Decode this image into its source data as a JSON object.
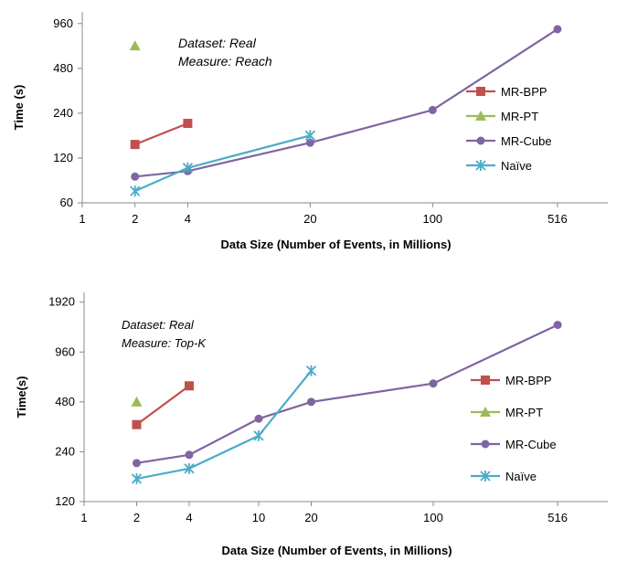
{
  "chart_data": [
    {
      "type": "line",
      "xlabel": "Data Size (Number of Events, in Millions)",
      "ylabel": "Time (s)",
      "x_scale": "log",
      "y_scale": "log",
      "xticks": [
        1,
        2,
        4,
        20,
        100,
        516
      ],
      "yticks": [
        60,
        120,
        240,
        480,
        960
      ],
      "xlim": [
        1,
        1000
      ],
      "ylim": [
        60,
        1150
      ],
      "annotations": [
        "Dataset: Real",
        "Measure: Reach"
      ],
      "legend_position": "right",
      "series": [
        {
          "name": "MR-BPP",
          "color": "#c0504d",
          "marker": "square",
          "points": [
            [
              2,
              148
            ],
            [
              4,
              205
            ]
          ]
        },
        {
          "name": "MR-PT",
          "color": "#9bbb59",
          "marker": "triangle",
          "points": [
            [
              2,
              680
            ]
          ]
        },
        {
          "name": "MR-Cube",
          "color": "#8064a2",
          "marker": "circle",
          "points": [
            [
              2,
              90
            ],
            [
              4,
              98
            ],
            [
              20,
              152
            ],
            [
              100,
              252
            ],
            [
              516,
              880
            ]
          ]
        },
        {
          "name": "Naïve",
          "color": "#4bacc6",
          "marker": "star",
          "points": [
            [
              2,
              72
            ],
            [
              4,
              103
            ],
            [
              20,
              170
            ]
          ]
        }
      ]
    },
    {
      "type": "line",
      "xlabel": "Data Size (Number of Events, in Millions)",
      "ylabel": "Time(s)",
      "x_scale": "log",
      "y_scale": "log",
      "xticks": [
        1,
        2,
        4,
        10,
        20,
        100,
        516
      ],
      "yticks": [
        120,
        240,
        480,
        960,
        1920
      ],
      "xlim": [
        1,
        1000
      ],
      "ylim": [
        120,
        2200
      ],
      "annotations": [
        "Dataset: Real",
        "Measure: Top-K"
      ],
      "legend_position": "right",
      "series": [
        {
          "name": "MR-BPP",
          "color": "#c0504d",
          "marker": "square",
          "points": [
            [
              2,
              350
            ],
            [
              4,
              600
            ]
          ]
        },
        {
          "name": "MR-PT",
          "color": "#9bbb59",
          "marker": "triangle",
          "points": [
            [
              2,
              480
            ]
          ]
        },
        {
          "name": "MR-Cube",
          "color": "#8064a2",
          "marker": "circle",
          "points": [
            [
              2,
              205
            ],
            [
              4,
              230
            ],
            [
              10,
              380
            ],
            [
              20,
              480
            ],
            [
              100,
              620
            ],
            [
              516,
              1400
            ]
          ]
        },
        {
          "name": "Naïve",
          "color": "#4bacc6",
          "marker": "star",
          "points": [
            [
              2,
              165
            ],
            [
              4,
              190
            ],
            [
              10,
              300
            ],
            [
              20,
              740
            ]
          ]
        }
      ]
    }
  ]
}
